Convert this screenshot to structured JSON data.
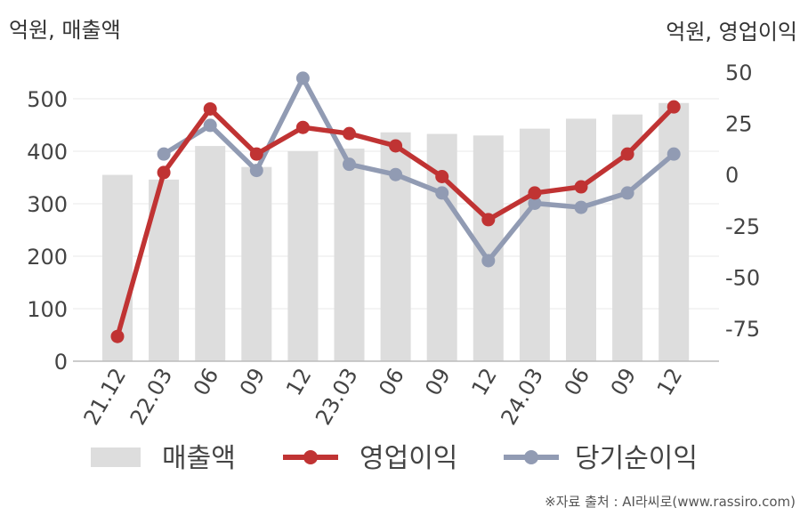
{
  "chart_data": {
    "type": "bar+line",
    "left_axis_unit": "억원, 매출액",
    "right_axis_unit": "억원, 영업이익",
    "categories": [
      "21.12",
      "22.03",
      "06",
      "09",
      "12",
      "23.03",
      "06",
      "09",
      "12",
      "24.03",
      "06",
      "09",
      "12"
    ],
    "left_axis": {
      "min": 0,
      "max": 550,
      "ticks": [
        0,
        100,
        200,
        300,
        400,
        500
      ]
    },
    "right_axis": {
      "min": -92,
      "max": 55,
      "ticks": [
        -75,
        -50,
        -25,
        0,
        25,
        50
      ]
    },
    "series": [
      {
        "name": "매출액",
        "kind": "bar",
        "axis": "left",
        "color": "#dddddd",
        "values": [
          355,
          346,
          410,
          370,
          400,
          405,
          436,
          433,
          430,
          443,
          462,
          470,
          492
        ]
      },
      {
        "name": "영업이익",
        "kind": "line",
        "axis": "right",
        "color": "#c03333",
        "values": [
          -79,
          1,
          32,
          10,
          23,
          20,
          14,
          -1,
          -22,
          -9,
          -6,
          10,
          33
        ]
      },
      {
        "name": "당기순이익",
        "kind": "line",
        "axis": "right",
        "color": "#919bb3",
        "values": [
          null,
          10,
          24,
          2,
          47,
          5,
          0,
          -9,
          -42,
          -14,
          -16,
          -9,
          10
        ]
      }
    ],
    "grid": "horizontal",
    "legend": "bottom"
  },
  "source": "※자료 출처 : AI라씨로(www.rassiro.com)"
}
